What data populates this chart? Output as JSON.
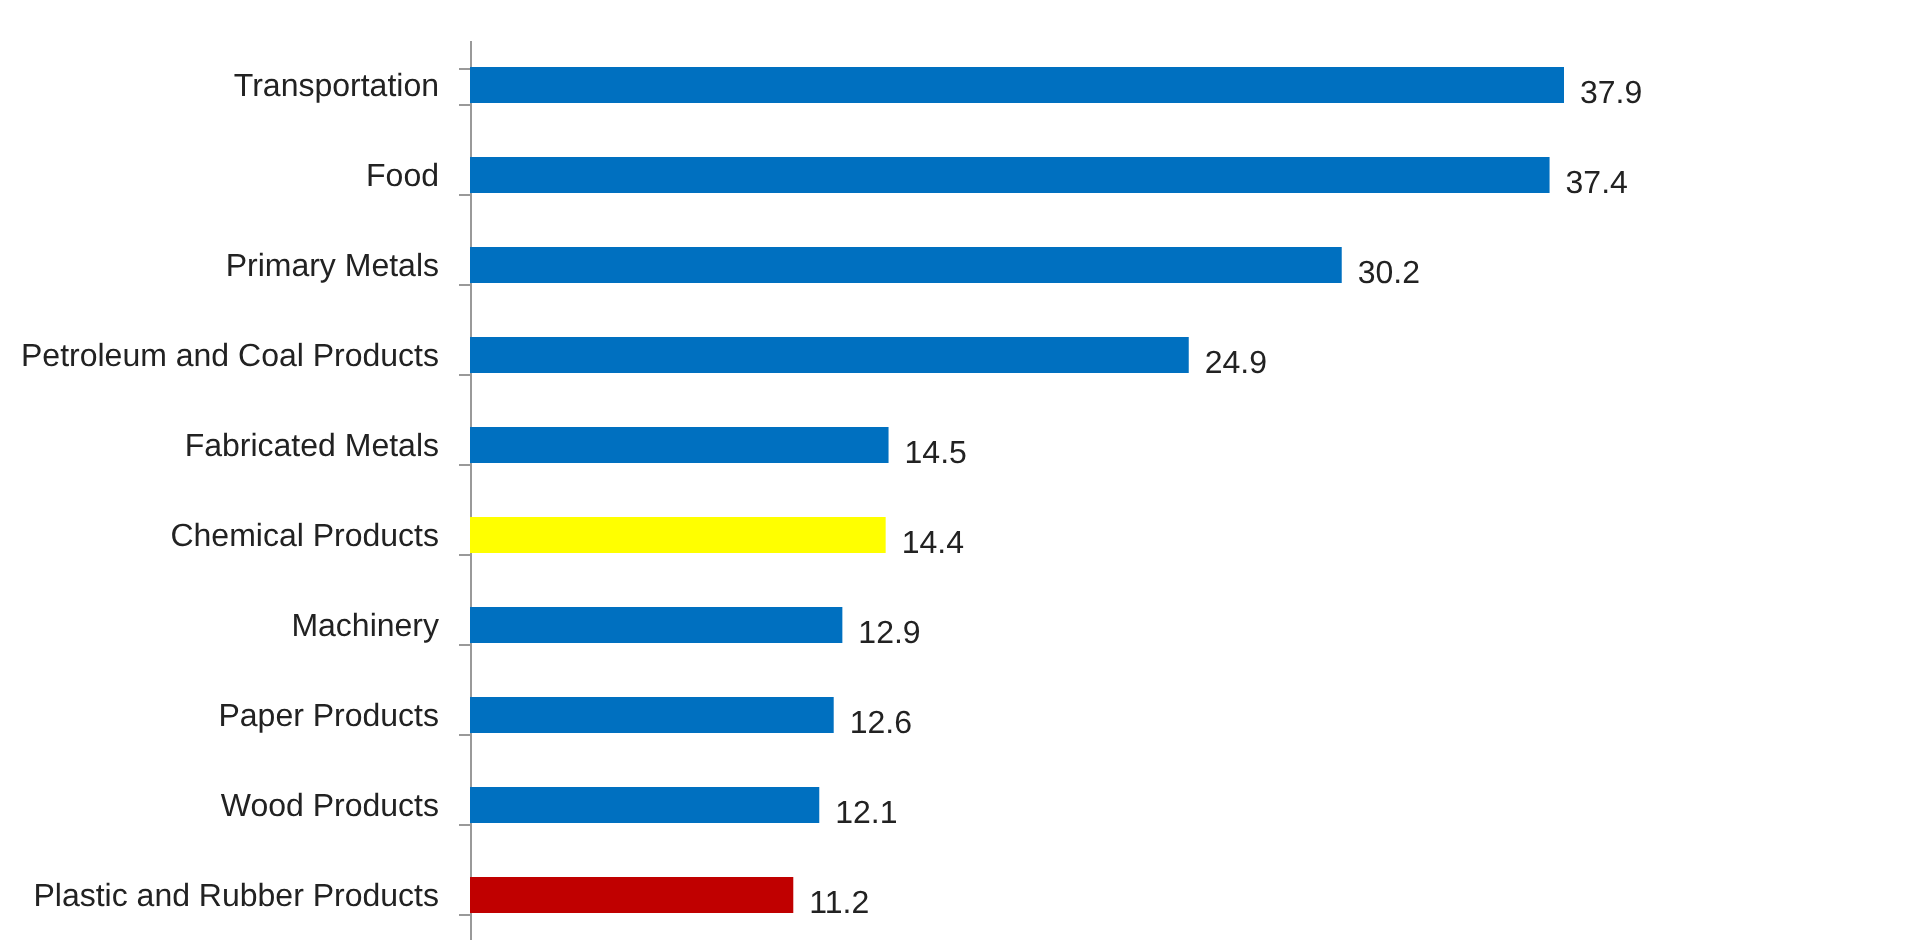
{
  "chart_data": {
    "type": "bar",
    "orientation": "horizontal",
    "categories": [
      "Transportation",
      "Food",
      "Primary Metals",
      "Petroleum and Coal Products",
      "Fabricated Metals",
      "Chemical Products",
      "Machinery",
      "Paper Products",
      "Wood Products",
      "Plastic and Rubber Products"
    ],
    "values": [
      37.9,
      37.4,
      30.2,
      24.9,
      14.5,
      14.4,
      12.9,
      12.6,
      12.1,
      11.2
    ],
    "colors": [
      "#0070c0",
      "#0070c0",
      "#0070c0",
      "#0070c0",
      "#0070c0",
      "#ffff00",
      "#0070c0",
      "#0070c0",
      "#0070c0",
      "#c00000"
    ],
    "data_labels": true,
    "tick_labels": "y"
  }
}
